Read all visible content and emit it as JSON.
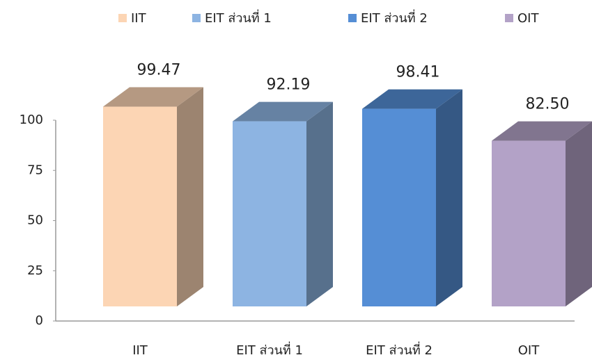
{
  "chart_data": {
    "type": "bar3d",
    "categories": [
      "IIT",
      "EIT ส่วนที่ 1",
      "EIT ส่วนที่ 2",
      "OIT"
    ],
    "values": [
      99.47,
      92.19,
      98.41,
      82.5
    ],
    "value_labels": [
      "99.47",
      "92.19",
      "98.41",
      "82.50"
    ],
    "colors": [
      "#fcd5b4",
      "#8db4e2",
      "#558ed5",
      "#b3a2c7"
    ],
    "ylim": [
      0,
      100
    ],
    "yticks": [
      0,
      25,
      50,
      75,
      100
    ],
    "legend": "top"
  }
}
